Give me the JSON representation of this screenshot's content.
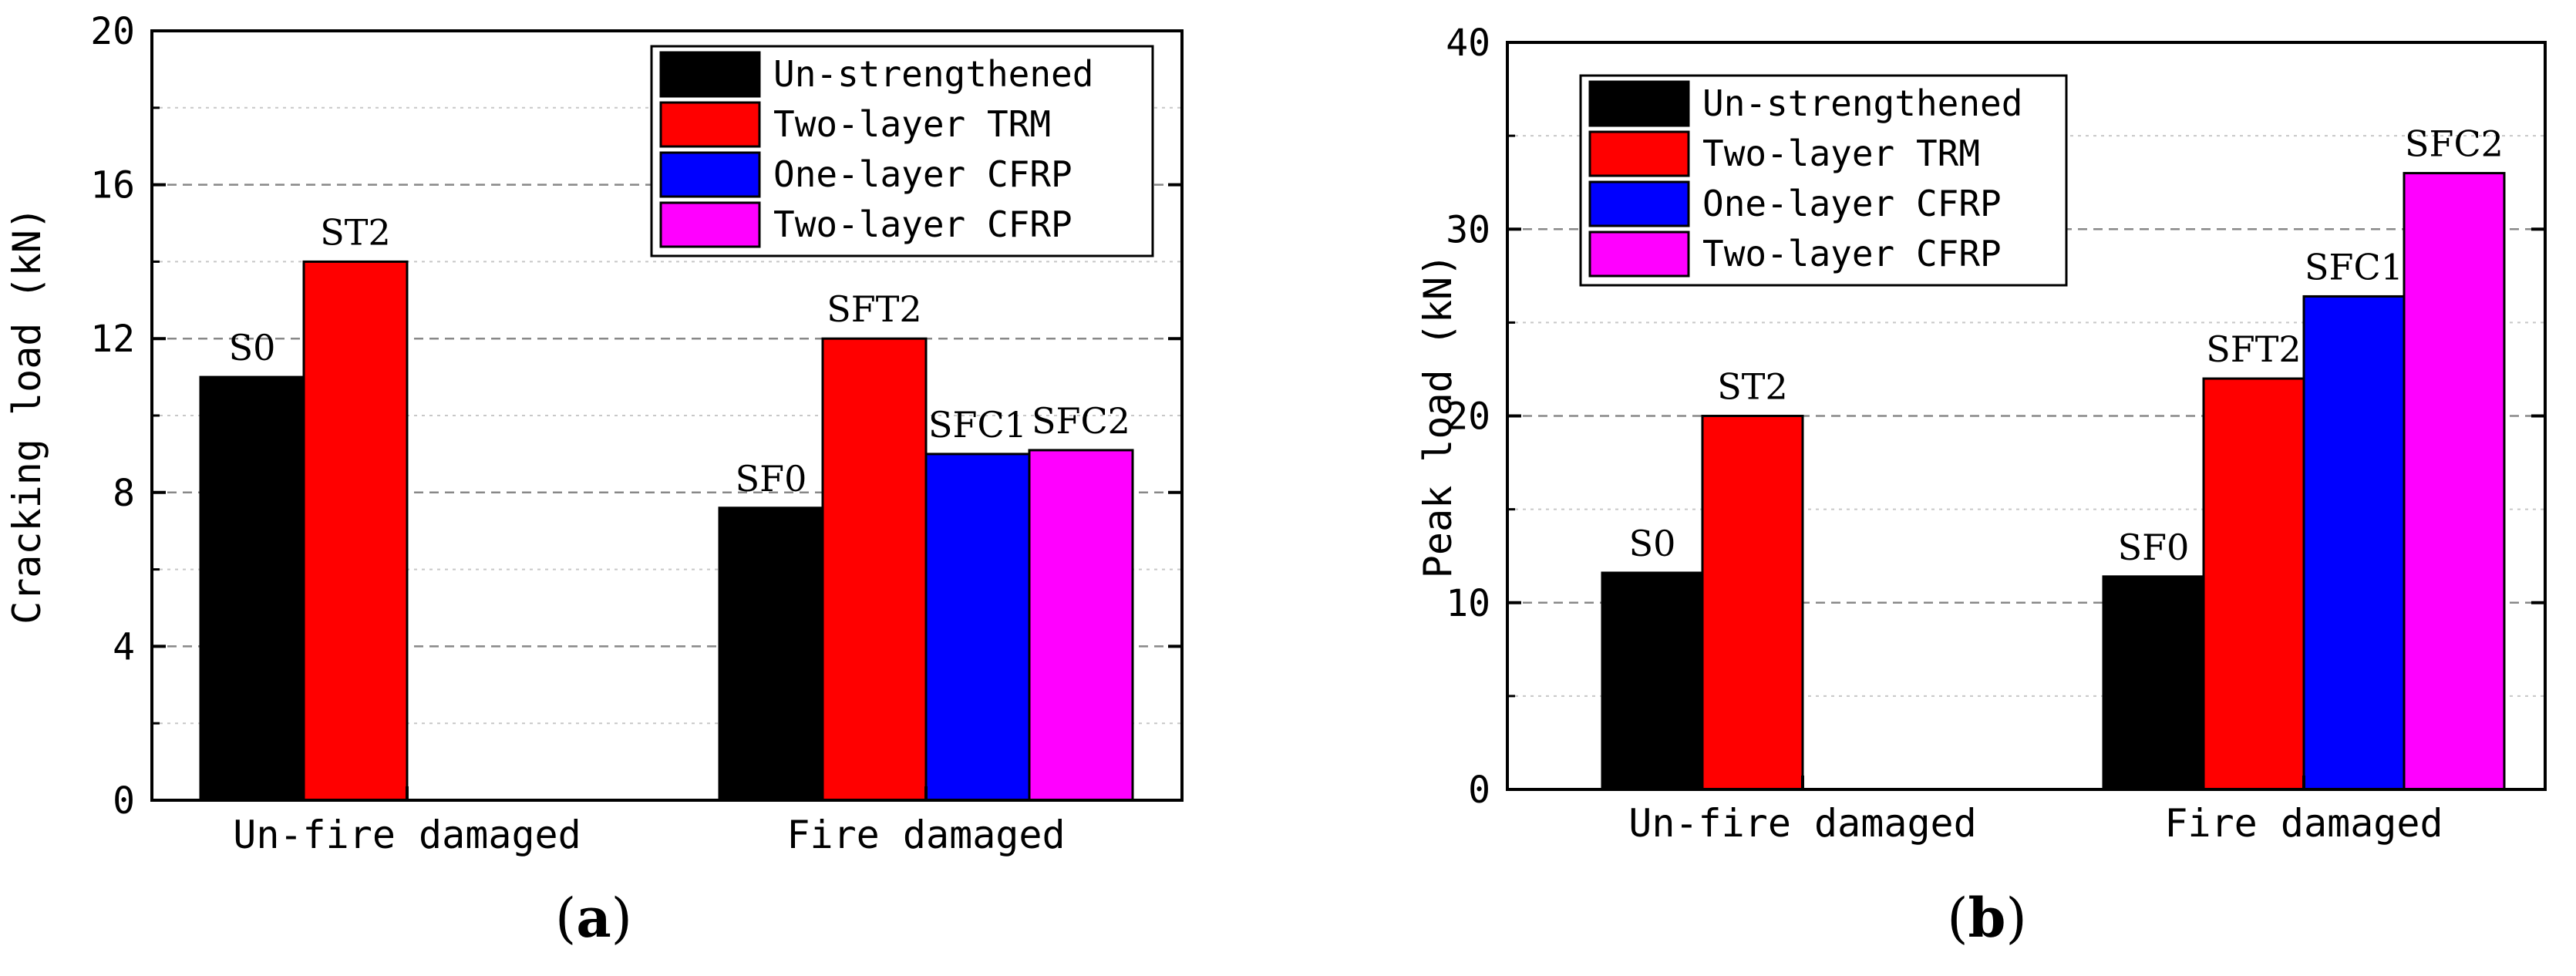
{
  "chart_data": [
    {
      "type": "bar",
      "panel_label": "(a)",
      "ylabel": "Cracking load (kN)",
      "xlabel": "",
      "ylim": [
        0,
        20
      ],
      "yticks": [
        0,
        4,
        8,
        12,
        16,
        20
      ],
      "minor_grid": [
        2,
        6,
        10,
        14,
        18
      ],
      "categories": [
        "Un-fire damaged",
        "Fire damaged"
      ],
      "legend_position": "top-right",
      "series": [
        {
          "name": "Un-strengthened",
          "color": "#000000",
          "values": [
            11.0,
            7.6
          ],
          "labels": [
            "S0",
            "SF0"
          ]
        },
        {
          "name": "Two-layer TRM",
          "color": "#ff0000",
          "values": [
            14.0,
            12.0
          ],
          "labels": [
            "ST2",
            "SFT2"
          ]
        },
        {
          "name": "One-layer CFRP",
          "color": "#0000ff",
          "values": [
            null,
            9.0
          ],
          "labels": [
            null,
            "SFC1"
          ]
        },
        {
          "name": "Two-layer CFRP",
          "color": "#ff00ff",
          "values": [
            null,
            9.1
          ],
          "labels": [
            null,
            "SFC2"
          ]
        }
      ]
    },
    {
      "type": "bar",
      "panel_label": "(b)",
      "ylabel": "Peak load (kN)",
      "xlabel": "",
      "ylim": [
        0,
        40
      ],
      "yticks": [
        0,
        10,
        20,
        30,
        40
      ],
      "minor_grid": [
        5,
        15,
        25,
        35
      ],
      "categories": [
        "Un-fire damaged",
        "Fire damaged"
      ],
      "legend_position": "top-left",
      "series": [
        {
          "name": "Un-strengthened",
          "color": "#000000",
          "values": [
            11.6,
            11.4
          ],
          "labels": [
            "S0",
            "SF0"
          ]
        },
        {
          "name": "Two-layer TRM",
          "color": "#ff0000",
          "values": [
            20.0,
            22.0
          ],
          "labels": [
            "ST2",
            "SFT2"
          ]
        },
        {
          "name": "One-layer CFRP",
          "color": "#0000ff",
          "values": [
            null,
            26.4
          ],
          "labels": [
            null,
            "SFC1"
          ]
        },
        {
          "name": "Two-layer CFRP",
          "color": "#ff00ff",
          "values": [
            null,
            33.0
          ],
          "labels": [
            null,
            "SFC2"
          ]
        }
      ]
    }
  ]
}
